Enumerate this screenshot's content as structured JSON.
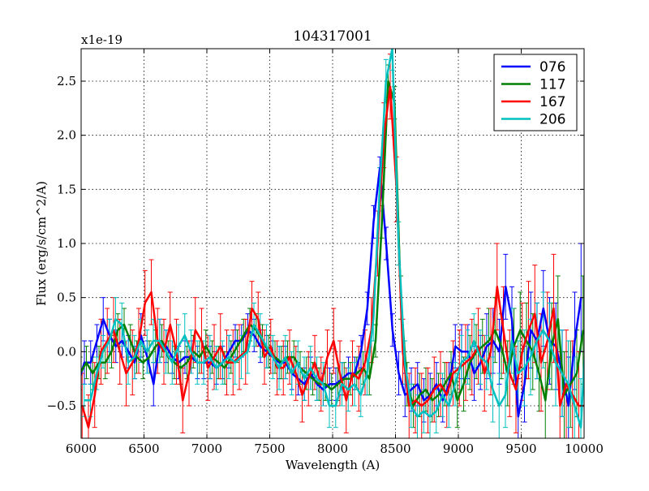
{
  "chart_data": {
    "type": "line",
    "title": "104317001",
    "xlabel": "Wavelength (A)",
    "ylabel": "Flux (erg/s/cm^2/A)",
    "y_multiplier_label": "x1e-19",
    "xlim": [
      6000,
      10000
    ],
    "ylim": [
      -0.8,
      2.8
    ],
    "xticks": [
      6000,
      6500,
      7000,
      7500,
      8000,
      8500,
      9000,
      9500,
      10000
    ],
    "xtick_labels": [
      "6000",
      "6500",
      "7000",
      "7500",
      "8000",
      "8500",
      "9000",
      "9500",
      "10000"
    ],
    "yticks": [
      -0.5,
      0.0,
      0.5,
      1.0,
      1.5,
      2.0,
      2.5
    ],
    "ytick_labels": [
      "−0.5",
      "0.0",
      "0.5",
      "1.0",
      "1.5",
      "2.0",
      "2.5"
    ],
    "grid": true,
    "legend_position": "top-right",
    "error_bars": true,
    "series": [
      {
        "name": "076",
        "color": "#0000ff",
        "x": [
          6000,
          6050,
          6100,
          6150,
          6200,
          6250,
          6300,
          6350,
          6400,
          6450,
          6500,
          6550,
          6600,
          6650,
          6700,
          6750,
          6800,
          6850,
          6900,
          6950,
          7000,
          7050,
          7100,
          7150,
          7200,
          7250,
          7300,
          7350,
          7400,
          7450,
          7500,
          7550,
          7600,
          7650,
          7700,
          7750,
          7800,
          7850,
          7900,
          7950,
          8000,
          8050,
          8100,
          8150,
          8200,
          8250,
          8300,
          8350,
          8400,
          8450,
          8500,
          8550,
          8600,
          8650,
          8700,
          8750,
          8800,
          8850,
          8900,
          8950,
          9000,
          9050,
          9100,
          9150,
          9200,
          9250,
          9300,
          9350,
          9400,
          9450,
          9500,
          9550,
          9600,
          9650,
          9700,
          9750,
          9800,
          9850,
          9900,
          9950,
          10000
        ],
        "y": [
          -0.3,
          -0.1,
          -0.1,
          0.1,
          0.3,
          0.15,
          0.05,
          0.1,
          0.0,
          -0.1,
          0.15,
          -0.05,
          -0.3,
          0.1,
          0.05,
          -0.05,
          -0.1,
          -0.05,
          -0.05,
          -0.1,
          -0.1,
          -0.1,
          -0.15,
          -0.1,
          0.0,
          0.1,
          0.1,
          0.2,
          0.15,
          0.05,
          0.0,
          -0.05,
          -0.1,
          -0.1,
          -0.2,
          -0.25,
          -0.3,
          -0.2,
          -0.3,
          -0.35,
          -0.3,
          -0.3,
          -0.25,
          -0.2,
          -0.2,
          0.0,
          0.4,
          1.2,
          1.7,
          1.0,
          0.2,
          -0.2,
          -0.4,
          -0.35,
          -0.3,
          -0.45,
          -0.4,
          -0.3,
          -0.45,
          -0.3,
          0.05,
          0.0,
          0.0,
          -0.2,
          -0.1,
          0.05,
          0.1,
          0.0,
          0.6,
          0.3,
          -0.6,
          -0.3,
          0.2,
          0.1,
          0.4,
          0.1,
          0.05,
          -0.2,
          -0.5,
          0.1,
          0.5
        ],
        "err": [
          0.15,
          0.2,
          0.2,
          0.15,
          0.2,
          0.15,
          0.15,
          0.15,
          0.15,
          0.15,
          0.2,
          0.15,
          0.2,
          0.2,
          0.15,
          0.15,
          0.15,
          0.15,
          0.15,
          0.15,
          0.15,
          0.15,
          0.15,
          0.15,
          0.15,
          0.15,
          0.15,
          0.15,
          0.15,
          0.15,
          0.15,
          0.15,
          0.15,
          0.15,
          0.15,
          0.15,
          0.15,
          0.15,
          0.15,
          0.15,
          0.15,
          0.15,
          0.15,
          0.15,
          0.15,
          0.15,
          0.15,
          0.15,
          0.1,
          0.15,
          0.15,
          0.2,
          0.2,
          0.2,
          0.2,
          0.2,
          0.2,
          0.2,
          0.2,
          0.2,
          0.2,
          0.25,
          0.25,
          0.25,
          0.25,
          0.3,
          0.3,
          0.3,
          0.3,
          0.3,
          0.35,
          0.35,
          0.35,
          0.35,
          0.35,
          0.4,
          0.4,
          0.4,
          0.45,
          0.45,
          0.5
        ]
      },
      {
        "name": "117",
        "color": "#007f00",
        "x": [
          6000,
          6050,
          6100,
          6150,
          6200,
          6250,
          6300,
          6350,
          6400,
          6450,
          6500,
          6550,
          6600,
          6650,
          6700,
          6750,
          6800,
          6850,
          6900,
          6950,
          7000,
          7050,
          7100,
          7150,
          7200,
          7250,
          7300,
          7350,
          7400,
          7450,
          7500,
          7550,
          7600,
          7650,
          7700,
          7750,
          7800,
          7850,
          7900,
          7950,
          8000,
          8050,
          8100,
          8150,
          8200,
          8250,
          8300,
          8350,
          8400,
          8450,
          8500,
          8550,
          8600,
          8650,
          8700,
          8750,
          8800,
          8850,
          8900,
          8950,
          9000,
          9050,
          9100,
          9150,
          9200,
          9250,
          9300,
          9350,
          9400,
          9450,
          9500,
          9550,
          9600,
          9650,
          9700,
          9750,
          9800,
          9850,
          9900,
          9950,
          10000
        ],
        "y": [
          -0.2,
          -0.1,
          -0.2,
          -0.1,
          -0.1,
          0.0,
          0.2,
          0.25,
          0.1,
          -0.05,
          -0.1,
          -0.05,
          0.05,
          0.1,
          -0.05,
          -0.1,
          -0.15,
          -0.1,
          0.0,
          -0.05,
          0.05,
          -0.05,
          -0.1,
          -0.15,
          -0.05,
          0.05,
          0.15,
          0.25,
          0.2,
          0.1,
          0.0,
          -0.05,
          -0.1,
          -0.05,
          -0.05,
          -0.15,
          -0.2,
          -0.25,
          -0.3,
          -0.3,
          -0.35,
          -0.3,
          -0.25,
          -0.25,
          -0.2,
          -0.15,
          -0.25,
          0.1,
          1.2,
          2.5,
          2.3,
          0.5,
          -0.3,
          -0.5,
          -0.4,
          -0.35,
          -0.45,
          -0.4,
          -0.3,
          -0.2,
          -0.45,
          -0.3,
          -0.1,
          0.0,
          0.05,
          0.1,
          0.2,
          0.05,
          -0.2,
          0.05,
          0.2,
          0.1,
          0.0,
          -0.2,
          -0.45,
          0.05,
          0.3,
          -0.4,
          -0.3,
          -0.2,
          0.2
        ],
        "err": [
          0.15,
          0.15,
          0.15,
          0.15,
          0.15,
          0.15,
          0.15,
          0.15,
          0.15,
          0.15,
          0.15,
          0.15,
          0.15,
          0.15,
          0.15,
          0.15,
          0.15,
          0.15,
          0.15,
          0.15,
          0.15,
          0.15,
          0.15,
          0.15,
          0.15,
          0.15,
          0.15,
          0.15,
          0.15,
          0.15,
          0.15,
          0.15,
          0.15,
          0.15,
          0.15,
          0.15,
          0.15,
          0.15,
          0.15,
          0.15,
          0.15,
          0.15,
          0.15,
          0.15,
          0.15,
          0.15,
          0.15,
          0.15,
          0.15,
          0.15,
          0.15,
          0.2,
          0.2,
          0.2,
          0.2,
          0.2,
          0.2,
          0.2,
          0.2,
          0.2,
          0.25,
          0.25,
          0.25,
          0.25,
          0.25,
          0.3,
          0.3,
          0.3,
          0.3,
          0.35,
          0.35,
          0.35,
          0.35,
          0.35,
          0.35,
          0.4,
          0.4,
          0.4,
          0.4,
          0.4,
          0.5
        ]
      },
      {
        "name": "167",
        "color": "#ff0000",
        "x": [
          6000,
          6050,
          6100,
          6150,
          6200,
          6250,
          6300,
          6350,
          6400,
          6450,
          6500,
          6550,
          6600,
          6650,
          6700,
          6750,
          6800,
          6850,
          6900,
          6950,
          7000,
          7050,
          7100,
          7150,
          7200,
          7250,
          7300,
          7350,
          7400,
          7450,
          7500,
          7550,
          7600,
          7650,
          7700,
          7750,
          7800,
          7850,
          7900,
          7950,
          8000,
          8050,
          8100,
          8150,
          8200,
          8250,
          8300,
          8350,
          8400,
          8450,
          8500,
          8550,
          8600,
          8650,
          8700,
          8750,
          8800,
          8850,
          8900,
          8950,
          9000,
          9050,
          9100,
          9150,
          9200,
          9250,
          9300,
          9350,
          9400,
          9450,
          9500,
          9550,
          9600,
          9650,
          9700,
          9750,
          9800,
          9850,
          9900,
          9950,
          10000
        ],
        "y": [
          -0.5,
          -0.7,
          -0.4,
          0.0,
          0.1,
          0.2,
          0.0,
          -0.2,
          -0.1,
          0.1,
          0.45,
          0.55,
          0.1,
          0.0,
          0.25,
          0.0,
          -0.45,
          -0.2,
          0.2,
          0.1,
          -0.15,
          -0.05,
          0.05,
          -0.1,
          -0.1,
          -0.05,
          0.0,
          0.4,
          0.3,
          -0.05,
          0.05,
          -0.15,
          -0.15,
          -0.05,
          -0.2,
          -0.4,
          -0.25,
          -0.1,
          -0.3,
          -0.05,
          0.1,
          -0.2,
          -0.45,
          -0.2,
          -0.25,
          -0.1,
          0.2,
          1.0,
          2.0,
          2.45,
          1.5,
          0.0,
          -0.5,
          -0.45,
          -0.5,
          -0.45,
          -0.35,
          -0.3,
          -0.4,
          -0.2,
          -0.15,
          -0.1,
          -0.05,
          0.05,
          -0.2,
          0.0,
          0.6,
          0.2,
          -0.2,
          -0.35,
          0.0,
          0.2,
          0.35,
          -0.1,
          0.1,
          0.4,
          -0.5,
          -0.3,
          -0.4,
          -0.5,
          -0.5
        ],
        "err": [
          0.3,
          0.3,
          0.3,
          0.3,
          0.3,
          0.3,
          0.3,
          0.3,
          0.3,
          0.3,
          0.3,
          0.3,
          0.3,
          0.3,
          0.3,
          0.3,
          0.3,
          0.3,
          0.3,
          0.3,
          0.3,
          0.3,
          0.3,
          0.3,
          0.3,
          0.3,
          0.3,
          0.25,
          0.25,
          0.25,
          0.25,
          0.25,
          0.25,
          0.25,
          0.25,
          0.25,
          0.25,
          0.25,
          0.25,
          0.25,
          0.3,
          0.3,
          0.3,
          0.3,
          0.3,
          0.3,
          0.3,
          0.3,
          0.3,
          0.3,
          0.3,
          0.3,
          0.3,
          0.3,
          0.3,
          0.3,
          0.3,
          0.3,
          0.3,
          0.3,
          0.35,
          0.35,
          0.35,
          0.35,
          0.35,
          0.4,
          0.4,
          0.4,
          0.4,
          0.4,
          0.45,
          0.45,
          0.45,
          0.45,
          0.45,
          0.5,
          0.5,
          0.5,
          0.5,
          0.5,
          0.5
        ]
      },
      {
        "name": "206",
        "color": "#00bfbf",
        "x": [
          6000,
          6050,
          6100,
          6150,
          6200,
          6250,
          6300,
          6350,
          6400,
          6450,
          6500,
          6550,
          6600,
          6650,
          6700,
          6750,
          6800,
          6850,
          6900,
          6950,
          7000,
          7050,
          7100,
          7150,
          7200,
          7250,
          7300,
          7350,
          7400,
          7450,
          7500,
          7550,
          7600,
          7650,
          7700,
          7750,
          7800,
          7850,
          7900,
          7950,
          8000,
          8050,
          8100,
          8150,
          8200,
          8250,
          8300,
          8350,
          8400,
          8450,
          8500,
          8550,
          8600,
          8650,
          8700,
          8750,
          8800,
          8850,
          8900,
          8950,
          9000,
          9050,
          9100,
          9150,
          9200,
          9250,
          9300,
          9350,
          9400,
          9450,
          9500,
          9550,
          9600,
          9650,
          9700,
          9750,
          9800,
          9850,
          9900,
          9950,
          10000
        ],
        "y": [
          -0.45,
          -0.45,
          -0.2,
          0.0,
          0.1,
          0.3,
          0.25,
          -0.1,
          -0.05,
          0.1,
          0.0,
          0.1,
          0.1,
          0.0,
          -0.1,
          0.05,
          0.15,
          0.0,
          -0.1,
          -0.1,
          -0.05,
          -0.15,
          -0.1,
          -0.05,
          -0.1,
          -0.05,
          0.0,
          0.25,
          0.15,
          0.05,
          -0.05,
          -0.15,
          -0.05,
          -0.2,
          -0.1,
          -0.25,
          -0.15,
          -0.25,
          -0.3,
          -0.5,
          -0.5,
          -0.3,
          -0.35,
          -0.3,
          -0.4,
          -0.2,
          0.3,
          1.5,
          2.5,
          2.8,
          1.0,
          -0.1,
          -0.5,
          -0.6,
          -0.55,
          -0.6,
          -0.55,
          -0.4,
          -0.5,
          -0.3,
          -0.1,
          -0.05,
          0.1,
          -0.05,
          -0.1,
          -0.35,
          -0.5,
          -0.4,
          0.1,
          -0.2,
          -0.15,
          -0.05,
          0.1,
          0.2,
          0.1,
          -0.1,
          -0.2,
          -0.3,
          -0.5,
          -0.7,
          0.4
        ],
        "err": [
          0.15,
          0.15,
          0.15,
          0.15,
          0.2,
          0.2,
          0.2,
          0.2,
          0.2,
          0.2,
          0.2,
          0.2,
          0.2,
          0.2,
          0.2,
          0.2,
          0.2,
          0.2,
          0.2,
          0.2,
          0.2,
          0.2,
          0.2,
          0.2,
          0.2,
          0.2,
          0.2,
          0.2,
          0.2,
          0.2,
          0.2,
          0.2,
          0.2,
          0.2,
          0.2,
          0.2,
          0.2,
          0.2,
          0.2,
          0.2,
          0.2,
          0.2,
          0.2,
          0.2,
          0.2,
          0.2,
          0.2,
          0.2,
          0.2,
          0.2,
          0.2,
          0.2,
          0.2,
          0.2,
          0.2,
          0.2,
          0.2,
          0.2,
          0.2,
          0.2,
          0.25,
          0.25,
          0.25,
          0.25,
          0.25,
          0.3,
          0.3,
          0.3,
          0.3,
          0.3,
          0.35,
          0.35,
          0.35,
          0.35,
          0.35,
          0.4,
          0.4,
          0.4,
          0.45,
          0.45,
          0.5
        ]
      }
    ]
  }
}
